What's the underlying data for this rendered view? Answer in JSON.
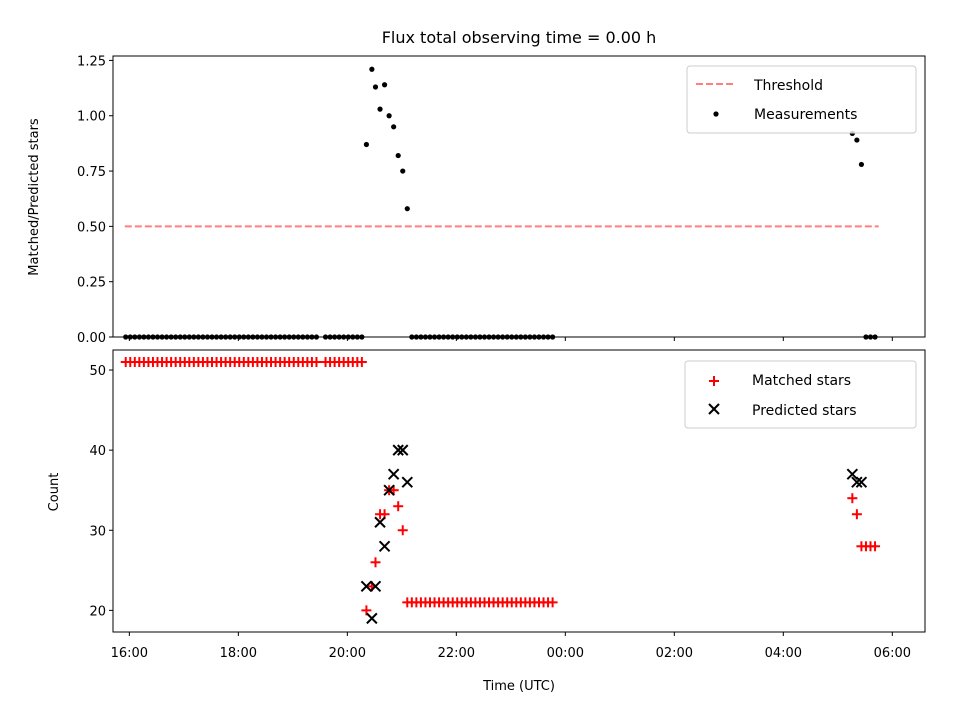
{
  "chart_data": [
    {
      "type": "scatter",
      "title": "Flux total observing time = 0.00 h",
      "ylabel": "Matched/Predicted stars",
      "ylim": [
        0,
        1.27
      ],
      "yticks": [
        "0.00",
        "0.25",
        "0.50",
        "0.75",
        "1.00",
        "1.25"
      ],
      "xlim_hours": [
        15.7,
        30.6
      ],
      "grid": false,
      "legend": {
        "placement": "top-right",
        "entries": [
          "Threshold",
          "Measurements"
        ]
      },
      "threshold": {
        "name": "Threshold",
        "value": 0.5,
        "x_range": [
          "15:55",
          "05:45"
        ],
        "color": "#ff7f7f",
        "style": "dashed"
      },
      "series": [
        {
          "name": "Measurements",
          "color": "#000000",
          "marker": "dot",
          "points": [
            [
              "15:56",
              0
            ],
            [
              "16:01",
              0
            ],
            [
              "16:06",
              0
            ],
            [
              "16:11",
              0
            ],
            [
              "16:16",
              0
            ],
            [
              "16:21",
              0
            ],
            [
              "16:26",
              0
            ],
            [
              "16:31",
              0
            ],
            [
              "16:36",
              0
            ],
            [
              "16:41",
              0
            ],
            [
              "16:46",
              0
            ],
            [
              "16:51",
              0
            ],
            [
              "16:56",
              0
            ],
            [
              "17:01",
              0
            ],
            [
              "17:06",
              0
            ],
            [
              "17:11",
              0
            ],
            [
              "17:16",
              0
            ],
            [
              "17:21",
              0
            ],
            [
              "17:26",
              0
            ],
            [
              "17:31",
              0
            ],
            [
              "17:36",
              0
            ],
            [
              "17:41",
              0
            ],
            [
              "17:46",
              0
            ],
            [
              "17:51",
              0
            ],
            [
              "17:56",
              0
            ],
            [
              "18:01",
              0
            ],
            [
              "18:06",
              0
            ],
            [
              "18:11",
              0
            ],
            [
              "18:16",
              0
            ],
            [
              "18:21",
              0
            ],
            [
              "18:26",
              0
            ],
            [
              "18:31",
              0
            ],
            [
              "18:36",
              0
            ],
            [
              "18:41",
              0
            ],
            [
              "18:46",
              0
            ],
            [
              "18:51",
              0
            ],
            [
              "18:56",
              0
            ],
            [
              "19:01",
              0
            ],
            [
              "19:06",
              0
            ],
            [
              "19:11",
              0
            ],
            [
              "19:16",
              0
            ],
            [
              "19:21",
              0
            ],
            [
              "19:26",
              0
            ],
            [
              "19:36",
              0
            ],
            [
              "19:41",
              0
            ],
            [
              "19:46",
              0
            ],
            [
              "19:51",
              0
            ],
            [
              "19:56",
              0
            ],
            [
              "20:01",
              0
            ],
            [
              "20:06",
              0
            ],
            [
              "20:11",
              0
            ],
            [
              "20:16",
              0
            ],
            [
              "20:21",
              0.87
            ],
            [
              "20:27",
              1.21
            ],
            [
              "20:31",
              1.13
            ],
            [
              "20:36",
              1.03
            ],
            [
              "20:41",
              1.14
            ],
            [
              "20:46",
              1.0
            ],
            [
              "20:51",
              0.95
            ],
            [
              "20:56",
              0.82
            ],
            [
              "21:01",
              0.75
            ],
            [
              "21:06",
              0.58
            ],
            [
              "21:11",
              0
            ],
            [
              "21:16",
              0
            ],
            [
              "21:21",
              0
            ],
            [
              "21:26",
              0
            ],
            [
              "21:31",
              0
            ],
            [
              "21:36",
              0
            ],
            [
              "21:41",
              0
            ],
            [
              "21:46",
              0
            ],
            [
              "21:51",
              0
            ],
            [
              "21:56",
              0
            ],
            [
              "22:01",
              0
            ],
            [
              "22:06",
              0
            ],
            [
              "22:11",
              0
            ],
            [
              "22:16",
              0
            ],
            [
              "22:21",
              0
            ],
            [
              "22:26",
              0
            ],
            [
              "22:31",
              0
            ],
            [
              "22:36",
              0
            ],
            [
              "22:41",
              0
            ],
            [
              "22:46",
              0
            ],
            [
              "22:51",
              0
            ],
            [
              "22:56",
              0
            ],
            [
              "23:01",
              0
            ],
            [
              "23:06",
              0
            ],
            [
              "23:11",
              0
            ],
            [
              "23:16",
              0
            ],
            [
              "23:21",
              0
            ],
            [
              "23:26",
              0
            ],
            [
              "23:31",
              0
            ],
            [
              "23:36",
              0
            ],
            [
              "23:41",
              0
            ],
            [
              "23:46",
              0
            ],
            [
              "05:16",
              0.92
            ],
            [
              "05:21",
              0.89
            ],
            [
              "05:26",
              0.78
            ],
            [
              "05:31",
              0
            ],
            [
              "05:36",
              0
            ],
            [
              "05:41",
              0
            ]
          ]
        }
      ]
    },
    {
      "type": "scatter",
      "xlabel": "Time (UTC)",
      "ylabel": "Count",
      "ylim": [
        17.3,
        52.5
      ],
      "yticks": [
        "20",
        "30",
        "40",
        "50"
      ],
      "xticks": [
        "16:00",
        "18:00",
        "20:00",
        "22:00",
        "00:00",
        "02:00",
        "04:00",
        "06:00"
      ],
      "xlim_hours": [
        15.7,
        30.6
      ],
      "grid": false,
      "legend": {
        "placement": "top-right",
        "entries": [
          "Matched stars",
          "Predicted stars"
        ]
      },
      "series": [
        {
          "name": "Matched stars",
          "color": "#ff0000",
          "marker": "plus",
          "points": [
            [
              "15:56",
              51
            ],
            [
              "16:01",
              51
            ],
            [
              "16:06",
              51
            ],
            [
              "16:11",
              51
            ],
            [
              "16:16",
              51
            ],
            [
              "16:21",
              51
            ],
            [
              "16:26",
              51
            ],
            [
              "16:31",
              51
            ],
            [
              "16:36",
              51
            ],
            [
              "16:41",
              51
            ],
            [
              "16:46",
              51
            ],
            [
              "16:51",
              51
            ],
            [
              "16:56",
              51
            ],
            [
              "17:01",
              51
            ],
            [
              "17:06",
              51
            ],
            [
              "17:11",
              51
            ],
            [
              "17:16",
              51
            ],
            [
              "17:21",
              51
            ],
            [
              "17:26",
              51
            ],
            [
              "17:31",
              51
            ],
            [
              "17:36",
              51
            ],
            [
              "17:41",
              51
            ],
            [
              "17:46",
              51
            ],
            [
              "17:51",
              51
            ],
            [
              "17:56",
              51
            ],
            [
              "18:01",
              51
            ],
            [
              "18:06",
              51
            ],
            [
              "18:11",
              51
            ],
            [
              "18:16",
              51
            ],
            [
              "18:21",
              51
            ],
            [
              "18:26",
              51
            ],
            [
              "18:31",
              51
            ],
            [
              "18:36",
              51
            ],
            [
              "18:41",
              51
            ],
            [
              "18:46",
              51
            ],
            [
              "18:51",
              51
            ],
            [
              "18:56",
              51
            ],
            [
              "19:01",
              51
            ],
            [
              "19:06",
              51
            ],
            [
              "19:11",
              51
            ],
            [
              "19:16",
              51
            ],
            [
              "19:21",
              51
            ],
            [
              "19:26",
              51
            ],
            [
              "19:36",
              51
            ],
            [
              "19:41",
              51
            ],
            [
              "19:46",
              51
            ],
            [
              "19:51",
              51
            ],
            [
              "19:56",
              51
            ],
            [
              "20:01",
              51
            ],
            [
              "20:06",
              51
            ],
            [
              "20:11",
              51
            ],
            [
              "20:16",
              51
            ],
            [
              "20:21",
              20
            ],
            [
              "20:27",
              23
            ],
            [
              "20:31",
              26
            ],
            [
              "20:36",
              32
            ],
            [
              "20:41",
              32
            ],
            [
              "20:46",
              35
            ],
            [
              "20:51",
              35
            ],
            [
              "20:56",
              33
            ],
            [
              "21:01",
              30
            ],
            [
              "21:06",
              21
            ],
            [
              "21:11",
              21
            ],
            [
              "21:16",
              21
            ],
            [
              "21:21",
              21
            ],
            [
              "21:26",
              21
            ],
            [
              "21:31",
              21
            ],
            [
              "21:36",
              21
            ],
            [
              "21:41",
              21
            ],
            [
              "21:46",
              21
            ],
            [
              "21:51",
              21
            ],
            [
              "21:56",
              21
            ],
            [
              "22:01",
              21
            ],
            [
              "22:06",
              21
            ],
            [
              "22:11",
              21
            ],
            [
              "22:16",
              21
            ],
            [
              "22:21",
              21
            ],
            [
              "22:26",
              21
            ],
            [
              "22:31",
              21
            ],
            [
              "22:36",
              21
            ],
            [
              "22:41",
              21
            ],
            [
              "22:46",
              21
            ],
            [
              "22:51",
              21
            ],
            [
              "22:56",
              21
            ],
            [
              "23:01",
              21
            ],
            [
              "23:06",
              21
            ],
            [
              "23:11",
              21
            ],
            [
              "23:16",
              21
            ],
            [
              "23:21",
              21
            ],
            [
              "23:26",
              21
            ],
            [
              "23:31",
              21
            ],
            [
              "23:36",
              21
            ],
            [
              "23:41",
              21
            ],
            [
              "23:46",
              21
            ],
            [
              "05:16",
              34
            ],
            [
              "05:21",
              32
            ],
            [
              "05:26",
              28
            ],
            [
              "05:31",
              28
            ],
            [
              "05:36",
              28
            ],
            [
              "05:41",
              28
            ]
          ]
        },
        {
          "name": "Predicted stars",
          "color": "#000000",
          "marker": "x",
          "points": [
            [
              "20:21",
              23
            ],
            [
              "20:27",
              19
            ],
            [
              "20:31",
              23
            ],
            [
              "20:36",
              31
            ],
            [
              "20:41",
              28
            ],
            [
              "20:46",
              35
            ],
            [
              "20:51",
              37
            ],
            [
              "20:56",
              40
            ],
            [
              "21:01",
              40
            ],
            [
              "21:06",
              36
            ],
            [
              "05:16",
              37
            ],
            [
              "05:21",
              36
            ],
            [
              "05:26",
              36
            ]
          ]
        }
      ]
    }
  ]
}
